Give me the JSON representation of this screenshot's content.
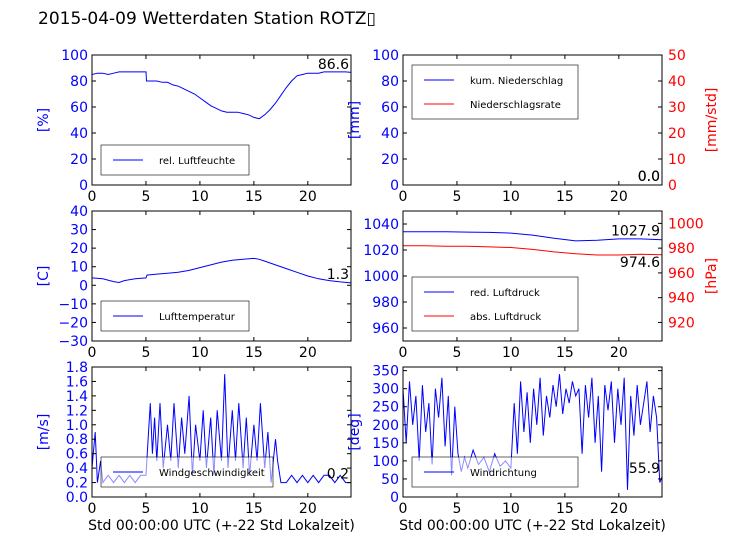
{
  "figure": {
    "title": "2015-04-09 Wetterdaten Station ROTZ▯",
    "xlabel": "Std 00:00:00 UTC (+-22 Std Lokalzeit)",
    "colors": {
      "primary": "#0000ff",
      "secondary": "#ff0000",
      "axes": "#000000"
    }
  },
  "chart_data": [
    {
      "id": "humidity",
      "type": "line",
      "ylabel": "[%]",
      "ylabel_color": "#0000ff",
      "xlim": [
        0,
        24
      ],
      "ylim": [
        0,
        100
      ],
      "xticks": [
        "0",
        "5",
        "10",
        "15",
        "20"
      ],
      "yticks": [
        "0",
        "20",
        "40",
        "60",
        "80",
        "100"
      ],
      "legend": "bottom-left",
      "last_value_label": "86.6",
      "series": [
        {
          "name": "rel. Luftfeuchte",
          "color": "#0000ff",
          "x": [
            0,
            0.5,
            1,
            1.5,
            2,
            2.5,
            3,
            3.5,
            4,
            4.5,
            5,
            5.05,
            5.5,
            6,
            6.5,
            7,
            7.5,
            8,
            8.5,
            9,
            9.5,
            10,
            10.5,
            11,
            11.5,
            12,
            12.5,
            13,
            13.5,
            14,
            14.5,
            15,
            15.5,
            16,
            16.5,
            17,
            17.5,
            18,
            18.5,
            19,
            19.5,
            20,
            20.5,
            21,
            21.5,
            22,
            22.5,
            23,
            23.5,
            24
          ],
          "y": [
            85,
            86,
            86,
            85,
            86,
            87,
            87,
            87,
            87,
            87,
            87,
            80,
            80,
            80,
            79,
            79,
            77,
            76,
            74,
            72,
            70,
            67,
            64,
            61,
            59,
            57,
            56,
            56,
            56,
            55,
            54,
            52,
            51,
            54,
            58,
            63,
            69,
            75,
            80,
            84,
            85,
            86,
            86,
            86,
            87,
            87,
            87,
            87,
            87,
            86.6
          ]
        }
      ]
    },
    {
      "id": "precipitation",
      "type": "line",
      "ylabel": "[mm]",
      "ylabel_color": "#0000ff",
      "y2label": "[mm/std]",
      "y2label_color": "#ff0000",
      "xlim": [
        0,
        24
      ],
      "ylim": [
        0,
        100
      ],
      "y2lim": [
        0,
        50
      ],
      "xticks": [
        "0",
        "5",
        "10",
        "15",
        "20"
      ],
      "yticks": [
        "0",
        "20",
        "40",
        "60",
        "80",
        "100"
      ],
      "y2ticks": [
        "0",
        "10",
        "20",
        "30",
        "40",
        "50"
      ],
      "legend": "top-left",
      "last_value_label": "0.0",
      "last_value_label2": "0.0",
      "series": [
        {
          "name": "kum. Niederschlag",
          "color": "#0000ff",
          "axis": "left",
          "x": [
            0,
            24
          ],
          "y": [
            0,
            0
          ]
        },
        {
          "name": "Niederschlagsrate",
          "color": "#ff0000",
          "axis": "right",
          "x": [
            0,
            24
          ],
          "y": [
            0,
            0
          ]
        }
      ]
    },
    {
      "id": "temperature",
      "type": "line",
      "ylabel": "[C]",
      "ylabel_color": "#0000ff",
      "xlim": [
        0,
        24
      ],
      "ylim": [
        -30,
        40
      ],
      "xticks": [
        "0",
        "5",
        "10",
        "15",
        "20"
      ],
      "yticks": [
        "−30",
        "−20",
        "−10",
        "0",
        "10",
        "20",
        "30",
        "40"
      ],
      "ytick_values": [
        -30,
        -20,
        -10,
        0,
        10,
        20,
        30,
        40
      ],
      "legend": "bottom-left",
      "last_value_label": "1.3",
      "series": [
        {
          "name": "Lufttemperatur",
          "color": "#0000ff",
          "x": [
            0,
            1,
            2,
            2.5,
            3,
            4,
            5,
            5.1,
            6,
            7,
            8,
            9,
            10,
            11,
            12,
            13,
            14,
            15,
            15.5,
            16,
            17,
            18,
            19,
            20,
            21,
            22,
            23,
            24
          ],
          "y": [
            4,
            3.5,
            2,
            1.5,
            2.5,
            3.5,
            4,
            5.5,
            6,
            6.5,
            7,
            8,
            9.5,
            11,
            12.5,
            13.5,
            14,
            14.5,
            14,
            13,
            11,
            9,
            7,
            5,
            3.5,
            2.5,
            1.8,
            1.3
          ]
        }
      ]
    },
    {
      "id": "pressure",
      "type": "line",
      "ylabel": "",
      "y2label": "[hPa]",
      "y2label_color": "#ff0000",
      "xlim": [
        0,
        24
      ],
      "ylim": [
        950,
        1050
      ],
      "y2lim": [
        905,
        1010
      ],
      "xticks": [
        "0",
        "5",
        "10",
        "15",
        "20"
      ],
      "yticks": [
        "960",
        "980",
        "1000",
        "1020",
        "1040"
      ],
      "ytick_values": [
        960,
        980,
        1000,
        1020,
        1040
      ],
      "y2ticks": [
        "920",
        "940",
        "960",
        "980",
        "1000"
      ],
      "y2tick_values": [
        920,
        940,
        960,
        980,
        1000
      ],
      "legend": "bottom-left",
      "last_value_label": "1027.9",
      "last_value_label2": "974.6",
      "series": [
        {
          "name": "red. Luftdruck",
          "color": "#0000ff",
          "axis": "left",
          "x": [
            0,
            2,
            4,
            6,
            8,
            10,
            12,
            14,
            16,
            18,
            20,
            22,
            24
          ],
          "y": [
            1034,
            1034,
            1034,
            1033.8,
            1033.5,
            1033,
            1031.5,
            1029,
            1027,
            1027.5,
            1028.5,
            1028.5,
            1027.9
          ]
        },
        {
          "name": "abs. Luftdruck",
          "color": "#ff0000",
          "axis": "right",
          "x": [
            0,
            2,
            4,
            6,
            8,
            10,
            12,
            14,
            16,
            18,
            20,
            22,
            24
          ],
          "y": [
            982,
            982,
            981.5,
            981.5,
            981,
            980.5,
            979,
            977,
            975.5,
            974.5,
            974.5,
            975,
            974.6
          ]
        }
      ]
    },
    {
      "id": "windspeed",
      "type": "line",
      "ylabel": "[m/s]",
      "ylabel_color": "#0000ff",
      "xlim": [
        0,
        24
      ],
      "ylim": [
        0,
        1.8
      ],
      "xticks": [
        "0",
        "5",
        "10",
        "15",
        "20"
      ],
      "yticks": [
        "0.0",
        "0.2",
        "0.4",
        "0.6",
        "0.8",
        "1.0",
        "1.2",
        "1.4",
        "1.6",
        "1.8"
      ],
      "ytick_values": [
        0,
        0.2,
        0.4,
        0.6,
        0.8,
        1.0,
        1.2,
        1.4,
        1.6,
        1.8
      ],
      "legend": "bottom-left",
      "last_value_label": "0.2",
      "series": [
        {
          "name": "Windgeschwindigkeit",
          "color": "#0000ff",
          "x": [
            0,
            0.3,
            0.5,
            0.8,
            1,
            1.5,
            2,
            2.5,
            3,
            3.5,
            4,
            4.5,
            5,
            5.2,
            5.4,
            5.6,
            5.8,
            6,
            6.3,
            6.6,
            7,
            7.3,
            7.6,
            8,
            8.3,
            8.6,
            9,
            9.3,
            9.6,
            10,
            10.3,
            10.6,
            11,
            11.3,
            11.6,
            12,
            12.3,
            12.6,
            13,
            13.3,
            13.6,
            14,
            14.3,
            14.6,
            15,
            15.3,
            15.6,
            16,
            16.3,
            16.6,
            17,
            17.2,
            17.5,
            18,
            18.5,
            19,
            19.5,
            20,
            20.5,
            21,
            21.5,
            22,
            22.5,
            23,
            23.5,
            24
          ],
          "y": [
            0.4,
            0.9,
            0.2,
            0.5,
            0.2,
            0.3,
            0.2,
            0.3,
            0.2,
            0.3,
            0.2,
            0.3,
            0.3,
            0.8,
            1.3,
            0.6,
            1.1,
            0.5,
            1.3,
            0.4,
            1.0,
            0.5,
            1.3,
            0.4,
            1.1,
            0.6,
            1.4,
            0.3,
            1.0,
            0.5,
            1.2,
            0.4,
            1.1,
            0.3,
            1.2,
            0.5,
            1.7,
            0.4,
            1.2,
            0.5,
            1.3,
            0.4,
            1.1,
            0.3,
            1.0,
            0.5,
            1.3,
            0.4,
            0.9,
            0.2,
            0.8,
            0.5,
            0.2,
            0.2,
            0.3,
            0.2,
            0.3,
            0.2,
            0.3,
            0.2,
            0.3,
            0.3,
            0.2,
            0.3,
            0.2,
            0.2
          ]
        }
      ]
    },
    {
      "id": "winddirection",
      "type": "line",
      "ylabel": "[deg]",
      "ylabel_color": "#0000ff",
      "xlim": [
        0,
        24
      ],
      "ylim": [
        0,
        360
      ],
      "xticks": [
        "0",
        "5",
        "10",
        "15",
        "20"
      ],
      "yticks": [
        "0",
        "50",
        "100",
        "150",
        "200",
        "250",
        "300",
        "350"
      ],
      "ytick_values": [
        0,
        50,
        100,
        150,
        200,
        250,
        300,
        350
      ],
      "legend": "bottom-left",
      "last_value_label": "55.9",
      "series": [
        {
          "name": "Windrichtung",
          "color": "#0000ff",
          "x": [
            0,
            0.3,
            0.6,
            0.9,
            1.2,
            1.5,
            1.8,
            2.1,
            2.4,
            2.7,
            3,
            3.3,
            3.6,
            3.9,
            4.2,
            4.5,
            4.8,
            5.1,
            5.4,
            5.7,
            6,
            6.5,
            7,
            7.5,
            8,
            8.5,
            9,
            9.5,
            10,
            10.3,
            10.6,
            10.9,
            11.2,
            11.5,
            11.8,
            12.1,
            12.4,
            12.7,
            13,
            13.3,
            13.6,
            13.9,
            14.2,
            14.5,
            14.8,
            15.1,
            15.4,
            15.7,
            16,
            16.3,
            16.6,
            16.9,
            17.2,
            17.5,
            17.8,
            18.1,
            18.4,
            18.7,
            19,
            19.3,
            19.6,
            19.9,
            20.2,
            20.5,
            20.8,
            21.1,
            21.4,
            21.7,
            22,
            22.3,
            22.6,
            22.9,
            23.2,
            23.5,
            23.8,
            24
          ],
          "y": [
            300,
            150,
            320,
            200,
            280,
            100,
            310,
            180,
            260,
            90,
            300,
            220,
            330,
            140,
            280,
            60,
            250,
            120,
            70,
            110,
            80,
            130,
            90,
            110,
            70,
            120,
            85,
            100,
            80,
            260,
            120,
            320,
            180,
            290,
            150,
            300,
            200,
            330,
            170,
            280,
            220,
            310,
            250,
            340,
            230,
            300,
            260,
            320,
            280,
            300,
            120,
            310,
            220,
            330,
            150,
            280,
            70,
            310,
            240,
            320,
            150,
            300,
            200,
            330,
            20,
            280,
            170,
            310,
            200,
            260,
            320,
            180,
            280,
            220,
            40,
            55.9
          ]
        }
      ]
    }
  ]
}
